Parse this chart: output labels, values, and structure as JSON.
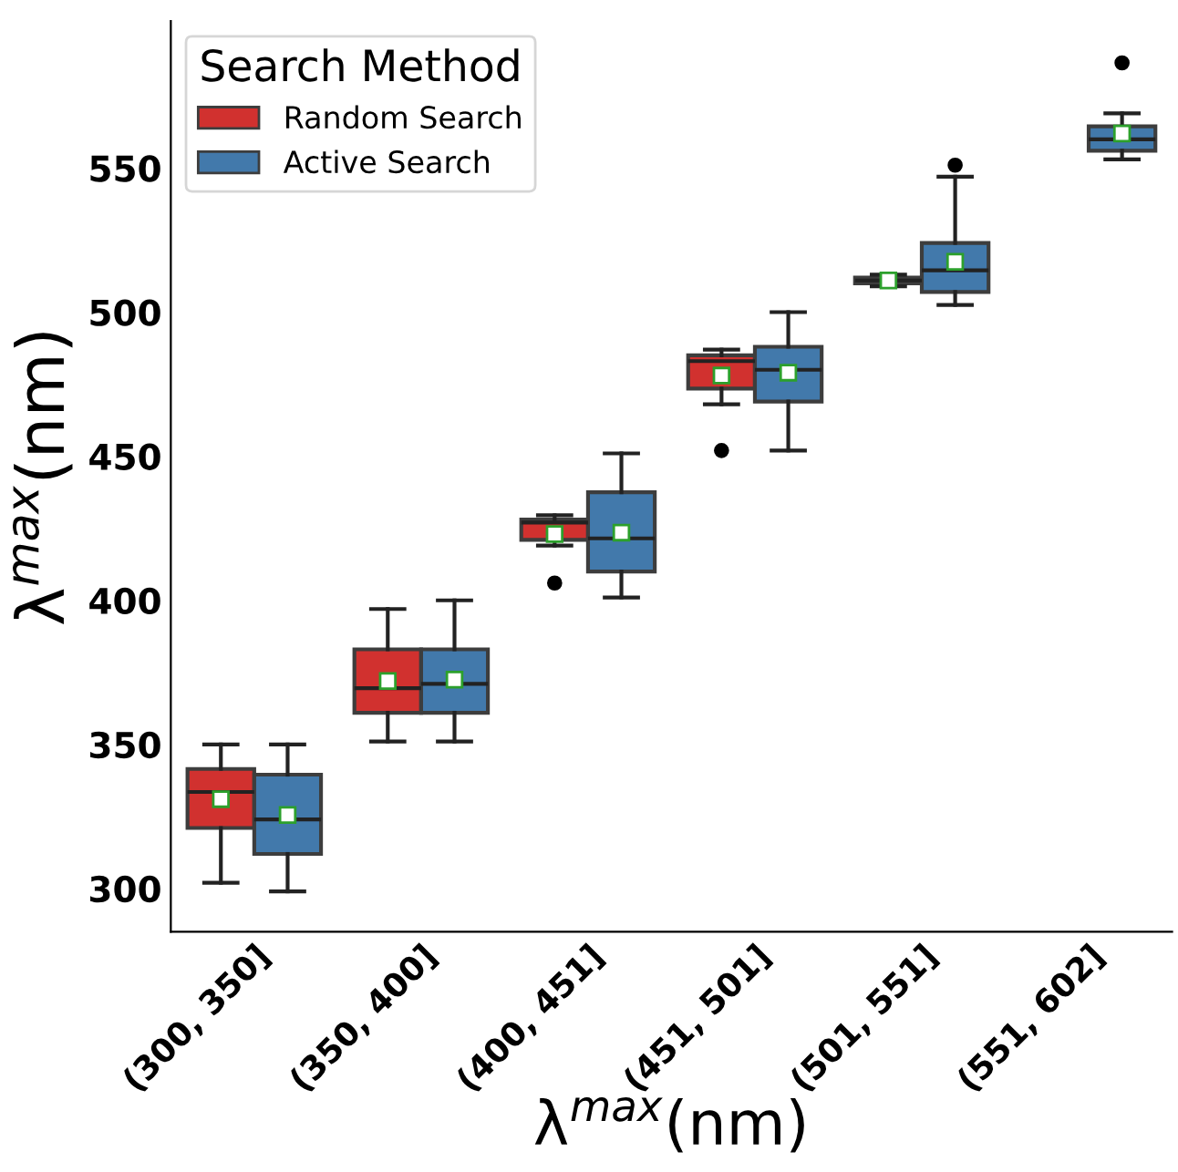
{
  "chart_data": {
    "type": "box",
    "xlabel": "λ$^{max}$(nm)",
    "ylabel": "λ$^{max}$(nm)",
    "legend_title": "Search Method",
    "legend": "top left",
    "grid": false,
    "categories": [
      "(300, 350]",
      "(350, 400]",
      "(400, 451]",
      "(451, 501]",
      "(501, 551]",
      "(551, 602]"
    ],
    "ylim": [
      285,
      601
    ],
    "yticks": [
      300,
      350,
      400,
      450,
      500,
      550
    ],
    "series": [
      {
        "name": "Random Search",
        "color": "#d1312f",
        "boxes": [
          {
            "low": 302,
            "q1": 321,
            "median": 333.5,
            "q3": 341.5,
            "high": 350,
            "mean": 331
          },
          {
            "low": 351,
            "q1": 361,
            "median": 369.5,
            "q3": 383,
            "high": 397,
            "mean": 372
          },
          {
            "low": 419,
            "q1": 421,
            "median": 427,
            "q3": 428,
            "high": 429.5,
            "mean": 423,
            "outliers": [
              406
            ]
          },
          {
            "low": 468,
            "q1": 473.5,
            "median": 483,
            "q3": 485,
            "high": 487,
            "mean": 478,
            "outliers": [
              452
            ]
          },
          {
            "low": 509,
            "q1": 510,
            "median": 511,
            "q3": 512,
            "high": 513,
            "mean": 511
          },
          null
        ]
      },
      {
        "name": "Active Search",
        "color": "#4279ab",
        "boxes": [
          {
            "low": 299,
            "q1": 312,
            "median": 324,
            "q3": 339.5,
            "high": 350,
            "mean": 325.5
          },
          {
            "low": 351,
            "q1": 361,
            "median": 371,
            "q3": 383,
            "high": 400,
            "mean": 372.5
          },
          {
            "low": 401,
            "q1": 410,
            "median": 421.5,
            "q3": 437.5,
            "high": 451,
            "mean": 423.5
          },
          {
            "low": 452,
            "q1": 469,
            "median": 480,
            "q3": 488,
            "high": 500,
            "mean": 479
          },
          {
            "low": 502.5,
            "q1": 507,
            "median": 514.5,
            "q3": 524,
            "high": 547,
            "mean": 517.5,
            "outliers": [
              551
            ]
          },
          {
            "low": 553,
            "q1": 556,
            "median": 560,
            "q3": 564.5,
            "high": 569,
            "mean": 562,
            "outliers": [
              586.5
            ]
          }
        ]
      }
    ]
  }
}
